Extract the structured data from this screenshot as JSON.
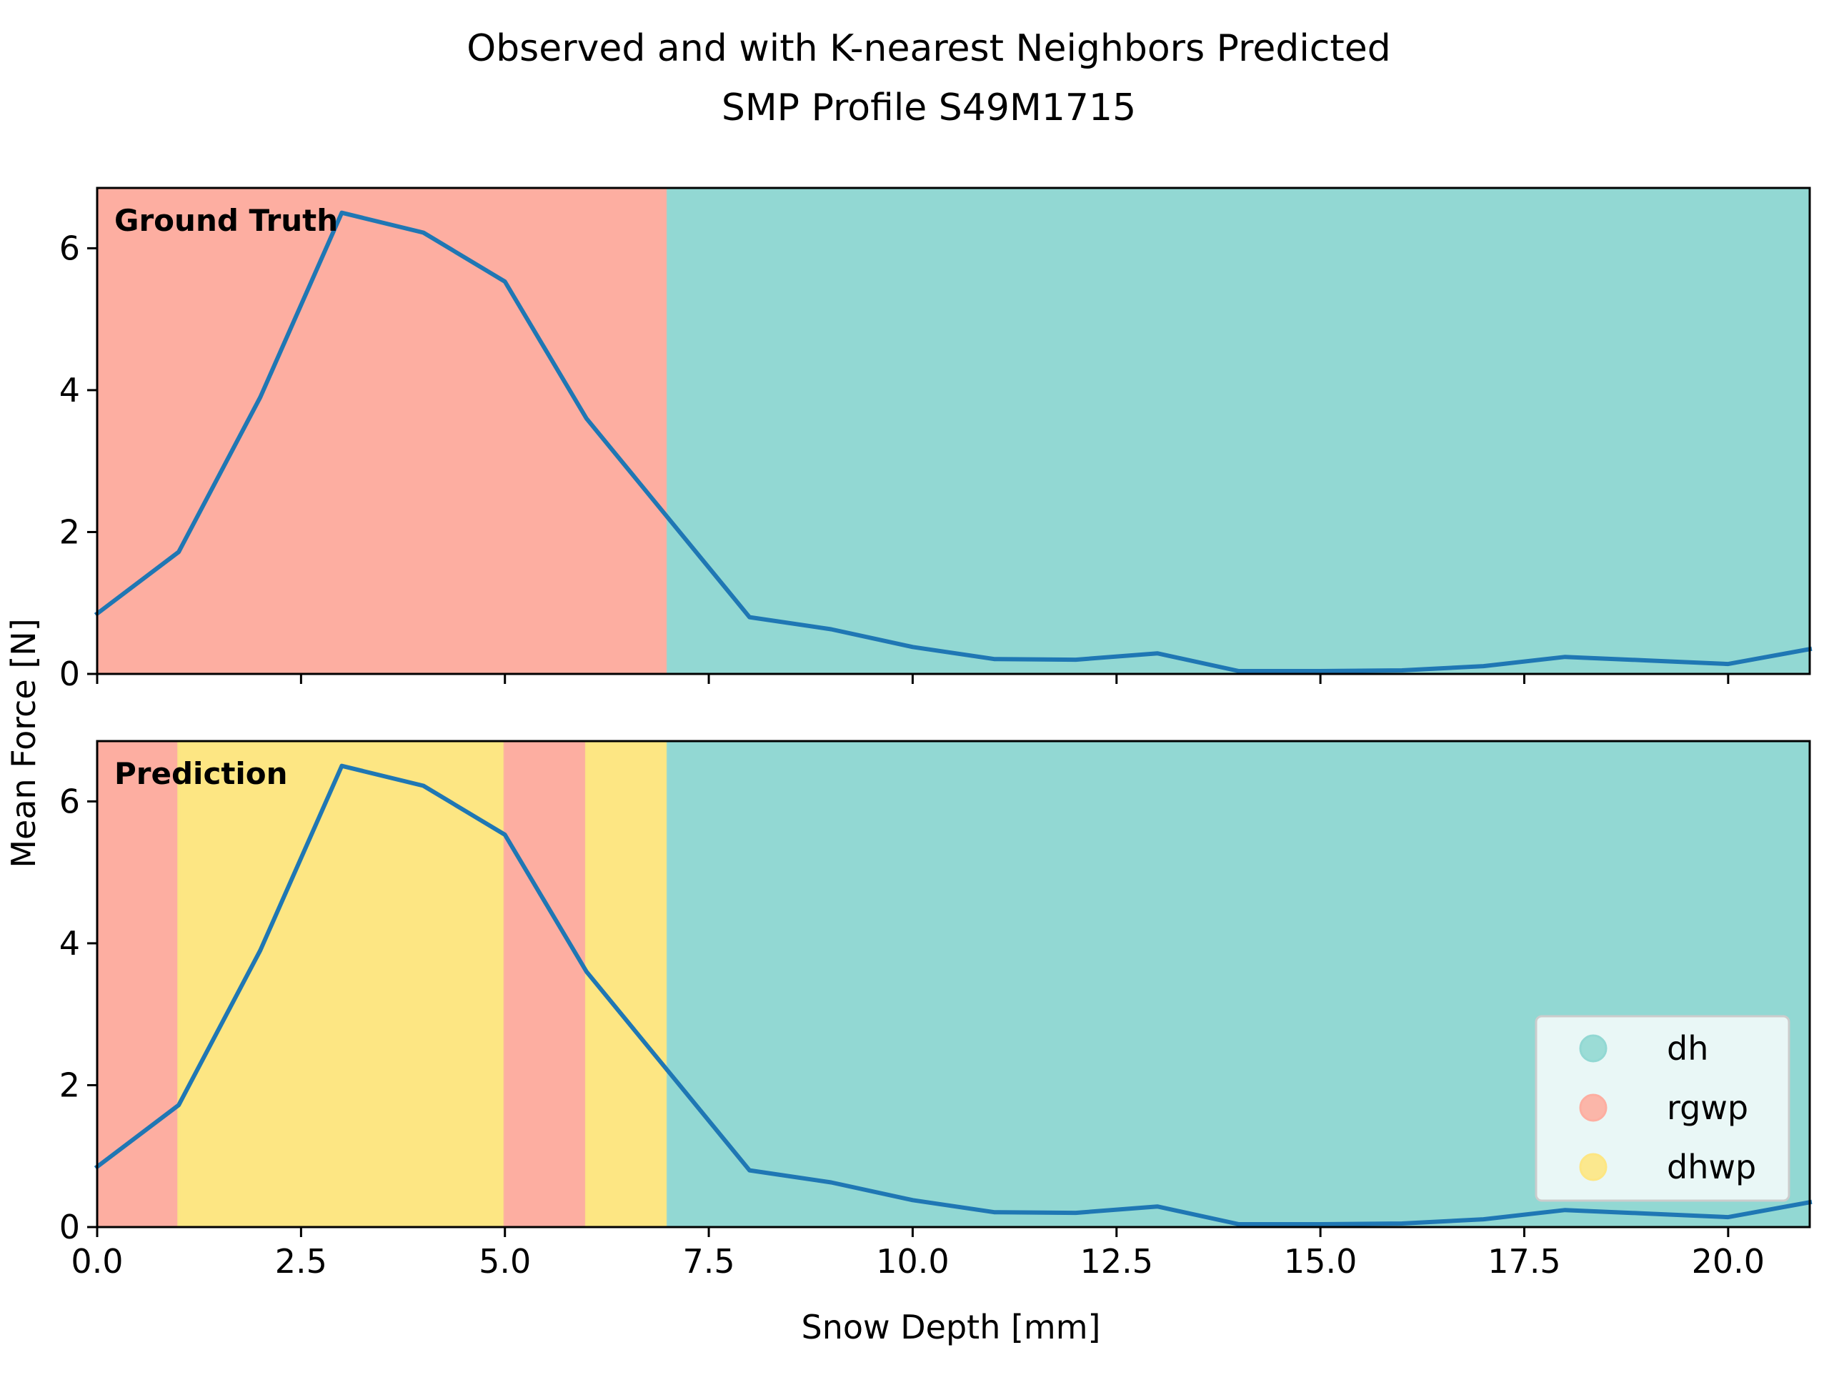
{
  "chart_data": {
    "type": "line",
    "title": "Observed and with K-nearest Neighbors Predicted",
    "subtitle": "SMP Profile S49M1715",
    "xlabel": "Snow Depth [mm]",
    "ylabel": "Mean Force [N]",
    "xlim": [
      0,
      21
    ],
    "ylim": [
      0,
      6.85
    ],
    "x_ticks": [
      "0.0",
      "2.5",
      "5.0",
      "7.5",
      "10.0",
      "12.5",
      "15.0",
      "17.5",
      "20.0"
    ],
    "x_tick_values": [
      0,
      2.5,
      5,
      7.5,
      10,
      12.5,
      15,
      17.5,
      20
    ],
    "y_ticks": [
      "0",
      "2",
      "4",
      "6"
    ],
    "y_tick_values": [
      0,
      2,
      4,
      6
    ],
    "grid": false,
    "legend_position": "lower-right",
    "classes": [
      {
        "name": "dh",
        "color": "#92d8d3"
      },
      {
        "name": "rgwp",
        "color": "#fdaea1"
      },
      {
        "name": "dhwp",
        "color": "#fde683"
      }
    ],
    "series": [
      {
        "color": "#1f77b4",
        "x": [
          0,
          1,
          2,
          3,
          4,
          5,
          6,
          7,
          8,
          9,
          10,
          11,
          12,
          13,
          14,
          15,
          16,
          17,
          18,
          19,
          20,
          21
        ],
        "values": [
          0.85,
          1.72,
          3.9,
          6.5,
          6.22,
          5.53,
          3.6,
          2.2,
          0.8,
          0.63,
          0.38,
          0.21,
          0.2,
          0.29,
          0.04,
          0.04,
          0.05,
          0.11,
          0.24,
          0.19,
          0.14,
          0.35
        ]
      }
    ],
    "panels": [
      {
        "label": "Ground Truth",
        "segments": [
          {
            "from": 0,
            "to": 7,
            "class": "rgwp"
          },
          {
            "from": 7,
            "to": 21,
            "class": "dh"
          }
        ]
      },
      {
        "label": "Prediction",
        "segments": [
          {
            "from": 0,
            "to": 1,
            "class": "rgwp"
          },
          {
            "from": 1,
            "to": 5,
            "class": "dhwp"
          },
          {
            "from": 5,
            "to": 6,
            "class": "rgwp"
          },
          {
            "from": 6,
            "to": 7,
            "class": "dhwp"
          },
          {
            "from": 7,
            "to": 21,
            "class": "dh"
          }
        ]
      }
    ]
  }
}
